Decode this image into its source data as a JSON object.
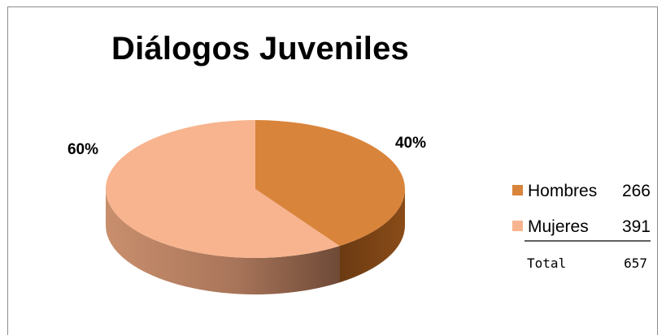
{
  "chart_data": {
    "type": "pie",
    "title": "Diálogos Juveniles",
    "slices": [
      {
        "label": "Hombres",
        "value": 266,
        "percent_label": "40%",
        "color": "#D9843B"
      },
      {
        "label": "Mujeres",
        "value": 391,
        "percent_label": "60%",
        "color": "#F7B48E"
      }
    ],
    "total_label": "Total",
    "total_value": 657,
    "legend_position": "right"
  }
}
